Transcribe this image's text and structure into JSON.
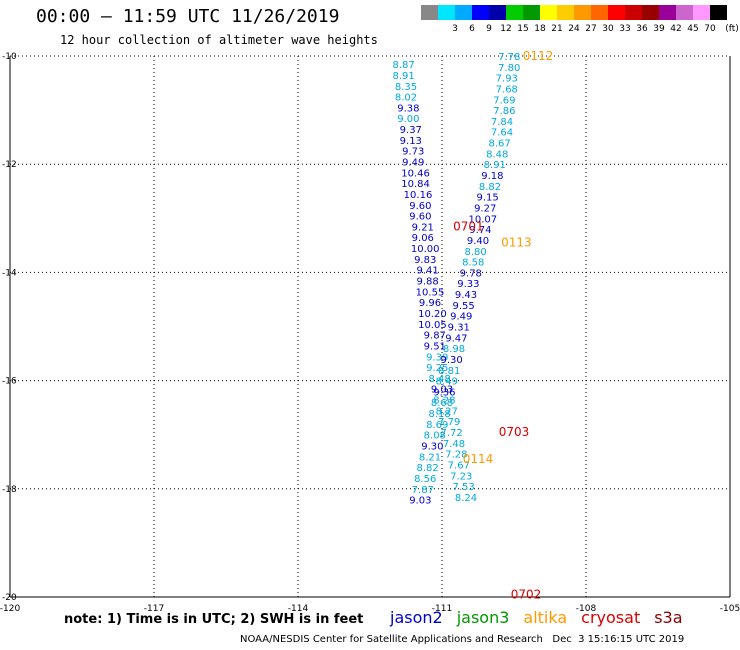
{
  "header": {
    "title": "00:00 – 11:59 UTC 11/26/2019",
    "subtitle": "12 hour collection of altimeter wave heights"
  },
  "color_scale": {
    "unit_label": "(ft)",
    "bins": [
      {
        "label": "",
        "color": "#888888"
      },
      {
        "label": "3",
        "color": "#00e6ff"
      },
      {
        "label": "6",
        "color": "#00aaff"
      },
      {
        "label": "9",
        "color": "#0000ff"
      },
      {
        "label": "12",
        "color": "#0000aa"
      },
      {
        "label": "15",
        "color": "#00cc00"
      },
      {
        "label": "18",
        "color": "#009900"
      },
      {
        "label": "21",
        "color": "#ffff00"
      },
      {
        "label": "24",
        "color": "#ffcc00"
      },
      {
        "label": "27",
        "color": "#ff9900"
      },
      {
        "label": "30",
        "color": "#ff6600"
      },
      {
        "label": "33",
        "color": "#ff0000"
      },
      {
        "label": "36",
        "color": "#cc0000"
      },
      {
        "label": "39",
        "color": "#990000"
      },
      {
        "label": "42",
        "color": "#990099"
      },
      {
        "label": "45",
        "color": "#cc66cc"
      },
      {
        "label": "70",
        "color": "#ff99ff"
      },
      {
        "label": "",
        "color": "#000000"
      }
    ]
  },
  "chart_data": {
    "type": "scatter",
    "x_range": [
      -120,
      -105
    ],
    "y_range": [
      -20,
      -10
    ],
    "x_ticks": [
      {
        "value": -120,
        "label": "-120"
      },
      {
        "value": -117,
        "label": "-117"
      },
      {
        "value": -114,
        "label": "-114"
      },
      {
        "value": -111,
        "label": "-111"
      },
      {
        "value": -108,
        "label": "-108"
      },
      {
        "value": -105,
        "label": "-105"
      }
    ],
    "y_ticks": [
      {
        "value": -10,
        "label": "-10"
      },
      {
        "value": -12,
        "label": "-12"
      },
      {
        "value": -14,
        "label": "-14"
      },
      {
        "value": -16,
        "label": "-16"
      },
      {
        "value": -18,
        "label": "-18"
      },
      {
        "value": -20,
        "label": "-20"
      }
    ],
    "grid": true,
    "series_colors": {
      "light": "#00aadd",
      "dark": "#0000cc",
      "altika": "#ff9900",
      "cryosat": "#dd0000"
    },
    "points": [
      {
        "x": -111.8,
        "y": -10.15,
        "v": "8.87",
        "c": "light"
      },
      {
        "x": -111.8,
        "y": -10.35,
        "v": "8.91",
        "c": "light"
      },
      {
        "x": -111.75,
        "y": -10.55,
        "v": "8.35",
        "c": "light"
      },
      {
        "x": -111.75,
        "y": -10.75,
        "v": "8.02",
        "c": "light"
      },
      {
        "x": -111.7,
        "y": -10.95,
        "v": "9.38",
        "c": "dark"
      },
      {
        "x": -111.7,
        "y": -11.15,
        "v": "9.00",
        "c": "light"
      },
      {
        "x": -111.65,
        "y": -11.35,
        "v": "9.37",
        "c": "dark"
      },
      {
        "x": -111.65,
        "y": -11.55,
        "v": "9.13",
        "c": "dark"
      },
      {
        "x": -111.6,
        "y": -11.75,
        "v": "9.73",
        "c": "dark"
      },
      {
        "x": -111.6,
        "y": -11.95,
        "v": "9.49",
        "c": "dark"
      },
      {
        "x": -111.55,
        "y": -12.15,
        "v": "10.46",
        "c": "dark"
      },
      {
        "x": -111.55,
        "y": -12.35,
        "v": "10.84",
        "c": "dark"
      },
      {
        "x": -111.5,
        "y": -12.55,
        "v": "10.16",
        "c": "dark"
      },
      {
        "x": -111.45,
        "y": -12.75,
        "v": "9.60",
        "c": "dark"
      },
      {
        "x": -111.45,
        "y": -12.95,
        "v": "9.60",
        "c": "dark"
      },
      {
        "x": -111.4,
        "y": -13.15,
        "v": "9.21",
        "c": "dark"
      },
      {
        "x": -111.4,
        "y": -13.35,
        "v": "9.06",
        "c": "dark"
      },
      {
        "x": -111.35,
        "y": -13.55,
        "v": "10.00",
        "c": "dark"
      },
      {
        "x": -111.35,
        "y": -13.75,
        "v": "9.83",
        "c": "dark"
      },
      {
        "x": -111.3,
        "y": -13.95,
        "v": "9.41",
        "c": "dark"
      },
      {
        "x": -111.3,
        "y": -14.15,
        "v": "9.88",
        "c": "dark"
      },
      {
        "x": -111.25,
        "y": -14.35,
        "v": "10.55",
        "c": "dark"
      },
      {
        "x": -111.25,
        "y": -14.55,
        "v": "9.96",
        "c": "dark"
      },
      {
        "x": -111.2,
        "y": -14.75,
        "v": "10.20",
        "c": "dark"
      },
      {
        "x": -111.2,
        "y": -14.95,
        "v": "10.05",
        "c": "dark"
      },
      {
        "x": -111.15,
        "y": -15.15,
        "v": "9.87",
        "c": "dark"
      },
      {
        "x": -111.15,
        "y": -15.35,
        "v": "9.51",
        "c": "dark"
      },
      {
        "x": -111.1,
        "y": -15.55,
        "v": "9.39",
        "c": "light"
      },
      {
        "x": -111.1,
        "y": -15.75,
        "v": "9.25",
        "c": "light"
      },
      {
        "x": -111.05,
        "y": -15.95,
        "v": "8.48",
        "c": "light"
      },
      {
        "x": -111.0,
        "y": -16.15,
        "v": "9.03",
        "c": "dark"
      },
      {
        "x": -110.95,
        "y": -16.35,
        "v": "8.28",
        "c": "light"
      },
      {
        "x": -110.9,
        "y": -16.55,
        "v": "8.27",
        "c": "light"
      },
      {
        "x": -110.85,
        "y": -16.75,
        "v": "7.79",
        "c": "light"
      },
      {
        "x": -110.8,
        "y": -16.95,
        "v": "7.72",
        "c": "light"
      },
      {
        "x": -110.75,
        "y": -17.15,
        "v": "7.48",
        "c": "light"
      },
      {
        "x": -110.7,
        "y": -17.35,
        "v": "7.28",
        "c": "light"
      },
      {
        "x": -110.65,
        "y": -17.55,
        "v": "7.67",
        "c": "light"
      },
      {
        "x": -110.6,
        "y": -17.75,
        "v": "7.23",
        "c": "light"
      },
      {
        "x": -110.55,
        "y": -17.95,
        "v": "7.53",
        "c": "light"
      },
      {
        "x": -110.5,
        "y": -18.15,
        "v": "8.24",
        "c": "light"
      }
    ],
    "points2": [
      {
        "x": -109.6,
        "y": -10.0,
        "v": "7.78",
        "c": "light"
      },
      {
        "x": -109.6,
        "y": -10.2,
        "v": "7.80",
        "c": "light"
      },
      {
        "x": -109.65,
        "y": -10.4,
        "v": "7.93",
        "c": "light"
      },
      {
        "x": -109.65,
        "y": -10.6,
        "v": "7.68",
        "c": "light"
      },
      {
        "x": -109.7,
        "y": -10.8,
        "v": "7.69",
        "c": "light"
      },
      {
        "x": -109.7,
        "y": -11.0,
        "v": "7.86",
        "c": "light"
      },
      {
        "x": -109.75,
        "y": -11.2,
        "v": "7.84",
        "c": "light"
      },
      {
        "x": -109.75,
        "y": -11.4,
        "v": "7.64",
        "c": "light"
      },
      {
        "x": -109.8,
        "y": -11.6,
        "v": "8.67",
        "c": "light"
      },
      {
        "x": -109.85,
        "y": -11.8,
        "v": "8.48",
        "c": "light"
      },
      {
        "x": -109.9,
        "y": -12.0,
        "v": "8.91",
        "c": "light"
      },
      {
        "x": -109.95,
        "y": -12.2,
        "v": "9.18",
        "c": "dark"
      },
      {
        "x": -110.0,
        "y": -12.4,
        "v": "8.82",
        "c": "light"
      },
      {
        "x": -110.05,
        "y": -12.6,
        "v": "9.15",
        "c": "dark"
      },
      {
        "x": -110.1,
        "y": -12.8,
        "v": "9.27",
        "c": "dark"
      },
      {
        "x": -110.15,
        "y": -13.0,
        "v": "10.07",
        "c": "dark"
      },
      {
        "x": -110.2,
        "y": -13.2,
        "v": "9.74",
        "c": "dark"
      },
      {
        "x": -110.25,
        "y": -13.4,
        "v": "9.40",
        "c": "dark"
      },
      {
        "x": -110.3,
        "y": -13.6,
        "v": "8.80",
        "c": "light"
      },
      {
        "x": -110.35,
        "y": -13.8,
        "v": "8.58",
        "c": "light"
      },
      {
        "x": -110.4,
        "y": -14.0,
        "v": "9.78",
        "c": "dark"
      },
      {
        "x": -110.45,
        "y": -14.2,
        "v": "9.33",
        "c": "dark"
      },
      {
        "x": -110.5,
        "y": -14.4,
        "v": "9.43",
        "c": "dark"
      },
      {
        "x": -110.55,
        "y": -14.6,
        "v": "9.55",
        "c": "dark"
      },
      {
        "x": -110.6,
        "y": -14.8,
        "v": "9.49",
        "c": "dark"
      },
      {
        "x": -110.65,
        "y": -15.0,
        "v": "9.31",
        "c": "dark"
      },
      {
        "x": -110.7,
        "y": -15.2,
        "v": "9.47",
        "c": "dark"
      },
      {
        "x": -110.75,
        "y": -15.4,
        "v": "8.98",
        "c": "light"
      },
      {
        "x": -110.8,
        "y": -15.6,
        "v": "9.30",
        "c": "dark"
      },
      {
        "x": -110.85,
        "y": -15.8,
        "v": "8.81",
        "c": "light"
      },
      {
        "x": -110.9,
        "y": -16.0,
        "v": "8.49",
        "c": "light"
      },
      {
        "x": -110.95,
        "y": -16.2,
        "v": "9.36",
        "c": "dark"
      },
      {
        "x": -111.0,
        "y": -16.4,
        "v": "8.68",
        "c": "light"
      },
      {
        "x": -111.05,
        "y": -16.6,
        "v": "8.18",
        "c": "light"
      },
      {
        "x": -111.1,
        "y": -16.8,
        "v": "8.69",
        "c": "light"
      },
      {
        "x": -111.15,
        "y": -17.0,
        "v": "8.08",
        "c": "light"
      },
      {
        "x": -111.2,
        "y": -17.2,
        "v": "9.30",
        "c": "dark"
      },
      {
        "x": -111.25,
        "y": -17.4,
        "v": "8.21",
        "c": "light"
      },
      {
        "x": -111.3,
        "y": -17.6,
        "v": "8.82",
        "c": "light"
      },
      {
        "x": -111.35,
        "y": -17.8,
        "v": "8.56",
        "c": "light"
      },
      {
        "x": -111.4,
        "y": -18.0,
        "v": "7.87",
        "c": "light"
      },
      {
        "x": -111.45,
        "y": -18.2,
        "v": "9.03",
        "c": "dark"
      }
    ],
    "time_labels": [
      {
        "x": -109.0,
        "y": -10.0,
        "v": "0112",
        "c": "altika"
      },
      {
        "x": -110.45,
        "y": -13.15,
        "v": "0701",
        "c": "cryosat"
      },
      {
        "x": -109.45,
        "y": -13.45,
        "v": "0113",
        "c": "altika"
      },
      {
        "x": -109.5,
        "y": -16.95,
        "v": "0703",
        "c": "cryosat"
      },
      {
        "x": -110.25,
        "y": -17.45,
        "v": "0114",
        "c": "altika"
      },
      {
        "x": -109.25,
        "y": -19.95,
        "v": "0702",
        "c": "cryosat"
      }
    ]
  },
  "legend": {
    "note": "note: 1) Time is in UTC; 2) SWH is in feet",
    "items": [
      {
        "label": "jason2",
        "color": "#0000cc"
      },
      {
        "label": "jason3",
        "color": "#009900"
      },
      {
        "label": "altika",
        "color": "#ff9900"
      },
      {
        "label": "cryosat",
        "color": "#dd0000"
      },
      {
        "label": "s3a",
        "color": "#880000"
      }
    ]
  },
  "footer": {
    "text": "NOAA/NESDIS Center for Satellite Applications and Research   Dec  3 15:16:15 UTC 2019"
  }
}
